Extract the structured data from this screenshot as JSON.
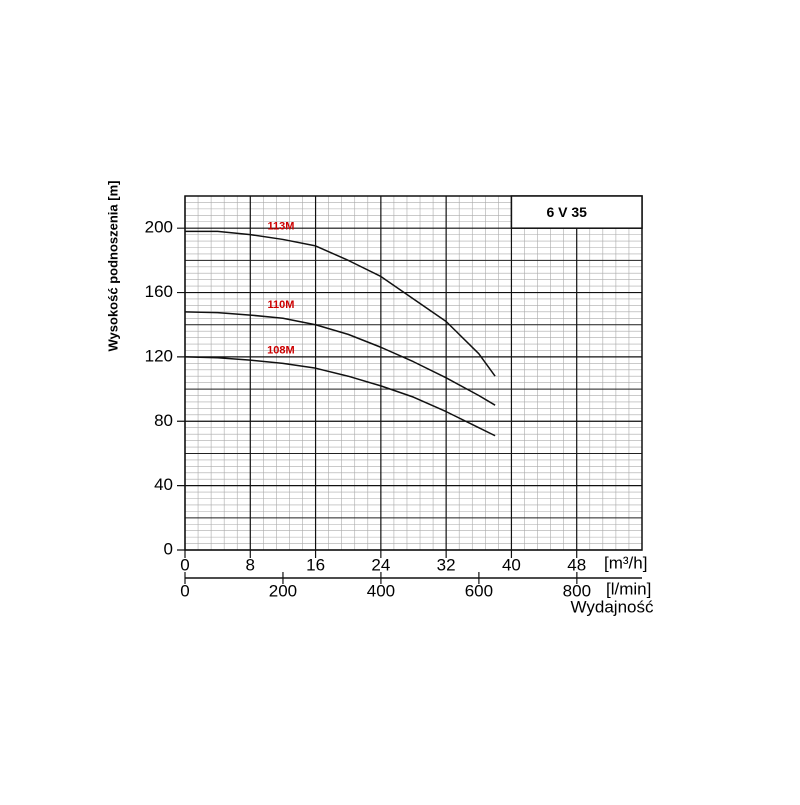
{
  "chart_data": {
    "type": "line",
    "box_title": "6 V 35",
    "y_label": "Wysokość podnoszenia [m]",
    "x_unit": "[m³/h]",
    "x2_unit": "[l/min]",
    "x_label": "Wydajność",
    "x": [
      0,
      4,
      8,
      12,
      16,
      20,
      24,
      28,
      32,
      36,
      38
    ],
    "series": [
      {
        "name": "113M",
        "color": "#111111",
        "label_color": "#cc0000",
        "values": [
          198,
          198,
          196,
          193,
          189,
          180,
          170,
          156,
          142,
          122,
          108
        ]
      },
      {
        "name": "110M",
        "color": "#111111",
        "label_color": "#cc0000",
        "values": [
          148,
          147.5,
          146,
          144,
          140,
          134,
          126,
          117,
          107,
          96,
          90
        ]
      },
      {
        "name": "108M",
        "color": "#111111",
        "label_color": "#cc0000",
        "values": [
          120,
          119.5,
          118,
          116,
          113,
          108,
          102,
          95,
          86,
          76,
          71
        ]
      }
    ],
    "xlim": [
      0,
      56
    ],
    "xticks": [
      0,
      8,
      16,
      24,
      32,
      40,
      48
    ],
    "x2lim": [
      0,
      933
    ],
    "x2ticks": [
      0,
      200,
      400,
      600,
      800
    ],
    "ylim": [
      0,
      220
    ],
    "yticks": [
      0,
      40,
      80,
      120,
      160,
      200
    ],
    "grid": true
  }
}
